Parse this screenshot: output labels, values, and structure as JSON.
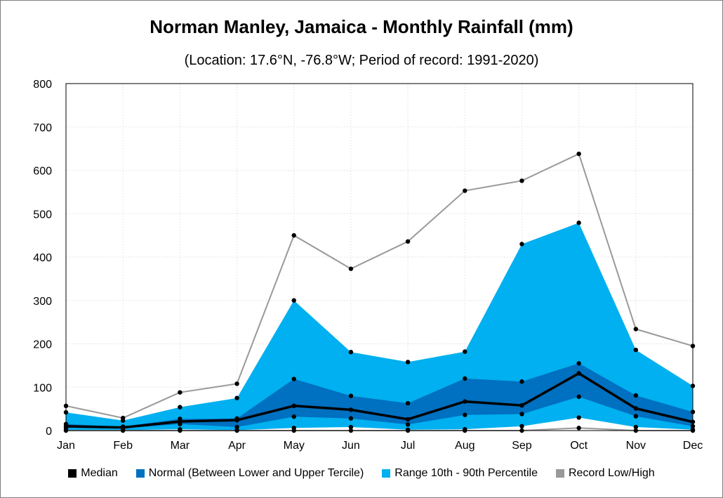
{
  "chart_data": {
    "type": "area",
    "title": "Norman Manley, Jamaica - Monthly Rainfall (mm)",
    "subtitle": "(Location: 17.6°N, -76.8°W; Period of record: 1991-2020)",
    "xlabel": "",
    "ylabel": "",
    "categories": [
      "Jan",
      "Feb",
      "Mar",
      "Apr",
      "May",
      "Jun",
      "Jul",
      "Aug",
      "Sep",
      "Oct",
      "Nov",
      "Dec"
    ],
    "ylim": [
      0,
      800
    ],
    "yticks": [
      0,
      100,
      200,
      300,
      400,
      500,
      600,
      700,
      800
    ],
    "grid": true,
    "legend_position": "bottom",
    "series": [
      {
        "name": "Record Low/High",
        "role": "record_high",
        "color": "#999999",
        "values": [
          57,
          29,
          88,
          108,
          450,
          373,
          436,
          553,
          576,
          638,
          234,
          195
        ]
      },
      {
        "name": "Record Low/High",
        "role": "record_low",
        "color": "#999999",
        "values": [
          0,
          0,
          0,
          0,
          0,
          0,
          0,
          0,
          0,
          6,
          0,
          0
        ]
      },
      {
        "name": "Range 10th - 90th Percentile",
        "role": "p90",
        "color": "#00b0f0",
        "values": [
          42,
          23,
          54,
          75,
          300,
          181,
          158,
          182,
          430,
          479,
          186,
          103
        ]
      },
      {
        "name": "Range 10th - 90th Percentile",
        "role": "p10",
        "color": "#00b0f0",
        "values": [
          1,
          1,
          3,
          1,
          6,
          8,
          2,
          3,
          10,
          30,
          8,
          2
        ]
      },
      {
        "name": "Normal (Between Lower and Upper Tercile)",
        "role": "upper_tercile",
        "color": "#0070c0",
        "values": [
          15,
          9,
          27,
          28,
          119,
          80,
          63,
          120,
          113,
          155,
          81,
          43
        ]
      },
      {
        "name": "Normal (Between Lower and Upper Tercile)",
        "role": "lower_tercile",
        "color": "#0070c0",
        "values": [
          6,
          5,
          15,
          8,
          32,
          28,
          14,
          36,
          38,
          78,
          33,
          10
        ]
      },
      {
        "name": "Median",
        "role": "median",
        "color": "#000000",
        "values": [
          10,
          7,
          21,
          24,
          57,
          48,
          26,
          67,
          58,
          132,
          51,
          20
        ]
      }
    ],
    "legend": [
      {
        "label": "Median",
        "color": "#000000"
      },
      {
        "label": "Normal (Between Lower and Upper Tercile)",
        "color": "#0070c0"
      },
      {
        "label": "Range 10th - 90th Percentile",
        "color": "#00b0f0"
      },
      {
        "label": "Record Low/High",
        "color": "#999999"
      }
    ]
  }
}
